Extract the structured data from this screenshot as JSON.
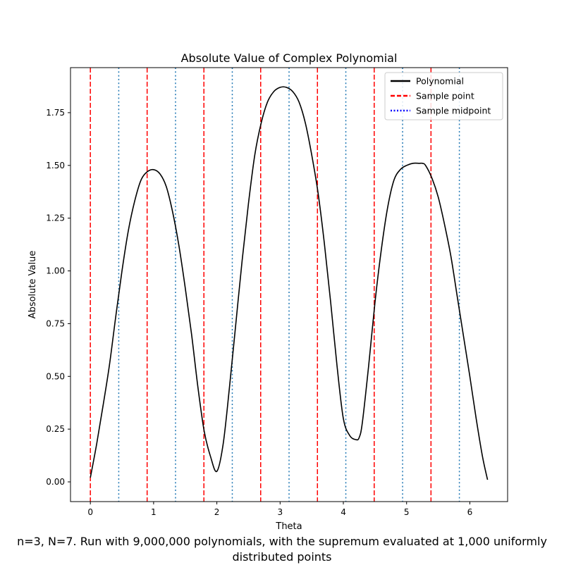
{
  "chart_data": {
    "type": "line",
    "title": "Absolute Value of Complex Polynomial",
    "xlabel": "Theta",
    "ylabel": "Absolute Value",
    "xlim": [
      -0.314,
      6.597
    ],
    "ylim": [
      -0.0935,
      1.9635
    ],
    "xticks": [
      0,
      1,
      2,
      3,
      4,
      5,
      6
    ],
    "xtick_labels": [
      "0",
      "1",
      "2",
      "3",
      "4",
      "5",
      "6"
    ],
    "yticks": [
      0.0,
      0.25,
      0.5,
      0.75,
      1.0,
      1.25,
      1.5,
      1.75
    ],
    "ytick_labels": [
      "0.00",
      "0.25",
      "0.50",
      "0.75",
      "1.00",
      "1.25",
      "1.50",
      "1.75"
    ],
    "grid": false,
    "legend_position": "top-right",
    "series": [
      {
        "name": "Polynomial",
        "style": "solid",
        "color": "#000000",
        "x": [
          0.0,
          0.1,
          0.2,
          0.3,
          0.4,
          0.5,
          0.6,
          0.7,
          0.8,
          0.9,
          1.0,
          1.1,
          1.2,
          1.3,
          1.4,
          1.5,
          1.6,
          1.7,
          1.8,
          1.9,
          2.0,
          2.1,
          2.2,
          2.3,
          2.4,
          2.5,
          2.6,
          2.7,
          2.8,
          2.9,
          3.0,
          3.1,
          3.2,
          3.3,
          3.4,
          3.5,
          3.6,
          3.7,
          3.8,
          3.9,
          4.0,
          4.1,
          4.2,
          4.25,
          4.3,
          4.4,
          4.5,
          4.6,
          4.7,
          4.8,
          4.9,
          5.0,
          5.1,
          5.2,
          5.25,
          5.3,
          5.4,
          5.5,
          5.6,
          5.7,
          5.8,
          5.9,
          6.0,
          6.1,
          6.2,
          6.28
        ],
        "y": [
          0.02,
          0.18,
          0.36,
          0.55,
          0.78,
          1.0,
          1.19,
          1.33,
          1.43,
          1.47,
          1.48,
          1.46,
          1.4,
          1.28,
          1.12,
          0.92,
          0.7,
          0.45,
          0.24,
          0.12,
          0.05,
          0.18,
          0.45,
          0.75,
          1.05,
          1.32,
          1.55,
          1.7,
          1.8,
          1.85,
          1.87,
          1.87,
          1.85,
          1.8,
          1.7,
          1.55,
          1.37,
          1.13,
          0.85,
          0.55,
          0.3,
          0.22,
          0.2,
          0.21,
          0.28,
          0.55,
          0.85,
          1.1,
          1.3,
          1.43,
          1.48,
          1.5,
          1.51,
          1.51,
          1.51,
          1.5,
          1.44,
          1.35,
          1.22,
          1.07,
          0.88,
          0.69,
          0.5,
          0.3,
          0.12,
          0.01
        ]
      },
      {
        "name": "Sample point",
        "style": "dashed",
        "color": "#ff0000",
        "x": [
          0.0,
          0.8976,
          1.7952,
          2.6928,
          3.5904,
          4.488,
          5.3856
        ]
      },
      {
        "name": "Sample midpoint",
        "style": "dotted",
        "color": "#1f77b4",
        "legend_color": "#0000ff",
        "x": [
          0.4488,
          1.3464,
          2.244,
          3.1416,
          4.0392,
          4.9368,
          5.8344
        ]
      }
    ],
    "caption_lines": [
      "n=3, N=7. Run with 9,000,000 polynomials, with the supremum evaluated at 1,000 uniformly",
      "distributed points"
    ]
  }
}
